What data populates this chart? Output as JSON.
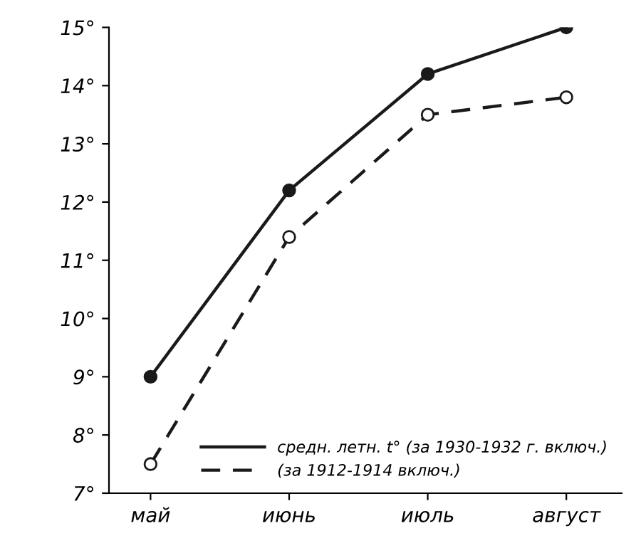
{
  "chart_data": {
    "type": "line",
    "categories": [
      "май",
      "июнь",
      "июль",
      "август"
    ],
    "series": [
      {
        "name": "средн. летн. t° (за 1930-1932 г. включ.)",
        "color": "#1a1a1a",
        "values": [
          9.0,
          12.2,
          14.2,
          15.0
        ],
        "marker": "circle",
        "line_style": "solid"
      },
      {
        "name": "(за 1912-1914 включ.)",
        "color": "#1a1a1a",
        "values": [
          7.5,
          11.4,
          13.5,
          13.8
        ],
        "marker": "circle",
        "line_style": "dashed"
      }
    ],
    "ylim": [
      7,
      15
    ],
    "yticks": [
      {
        "value": 7,
        "label": "7°"
      },
      {
        "value": 8,
        "label": "8°"
      },
      {
        "value": 9,
        "label": "9°"
      },
      {
        "value": 10,
        "label": "10°"
      },
      {
        "value": 11,
        "label": "11°"
      },
      {
        "value": 12,
        "label": "12°"
      },
      {
        "value": 13,
        "label": "13°"
      },
      {
        "value": 14,
        "label": "14°"
      },
      {
        "value": 15,
        "label": "15°"
      }
    ],
    "grid": false,
    "legend": "bottom right"
  }
}
